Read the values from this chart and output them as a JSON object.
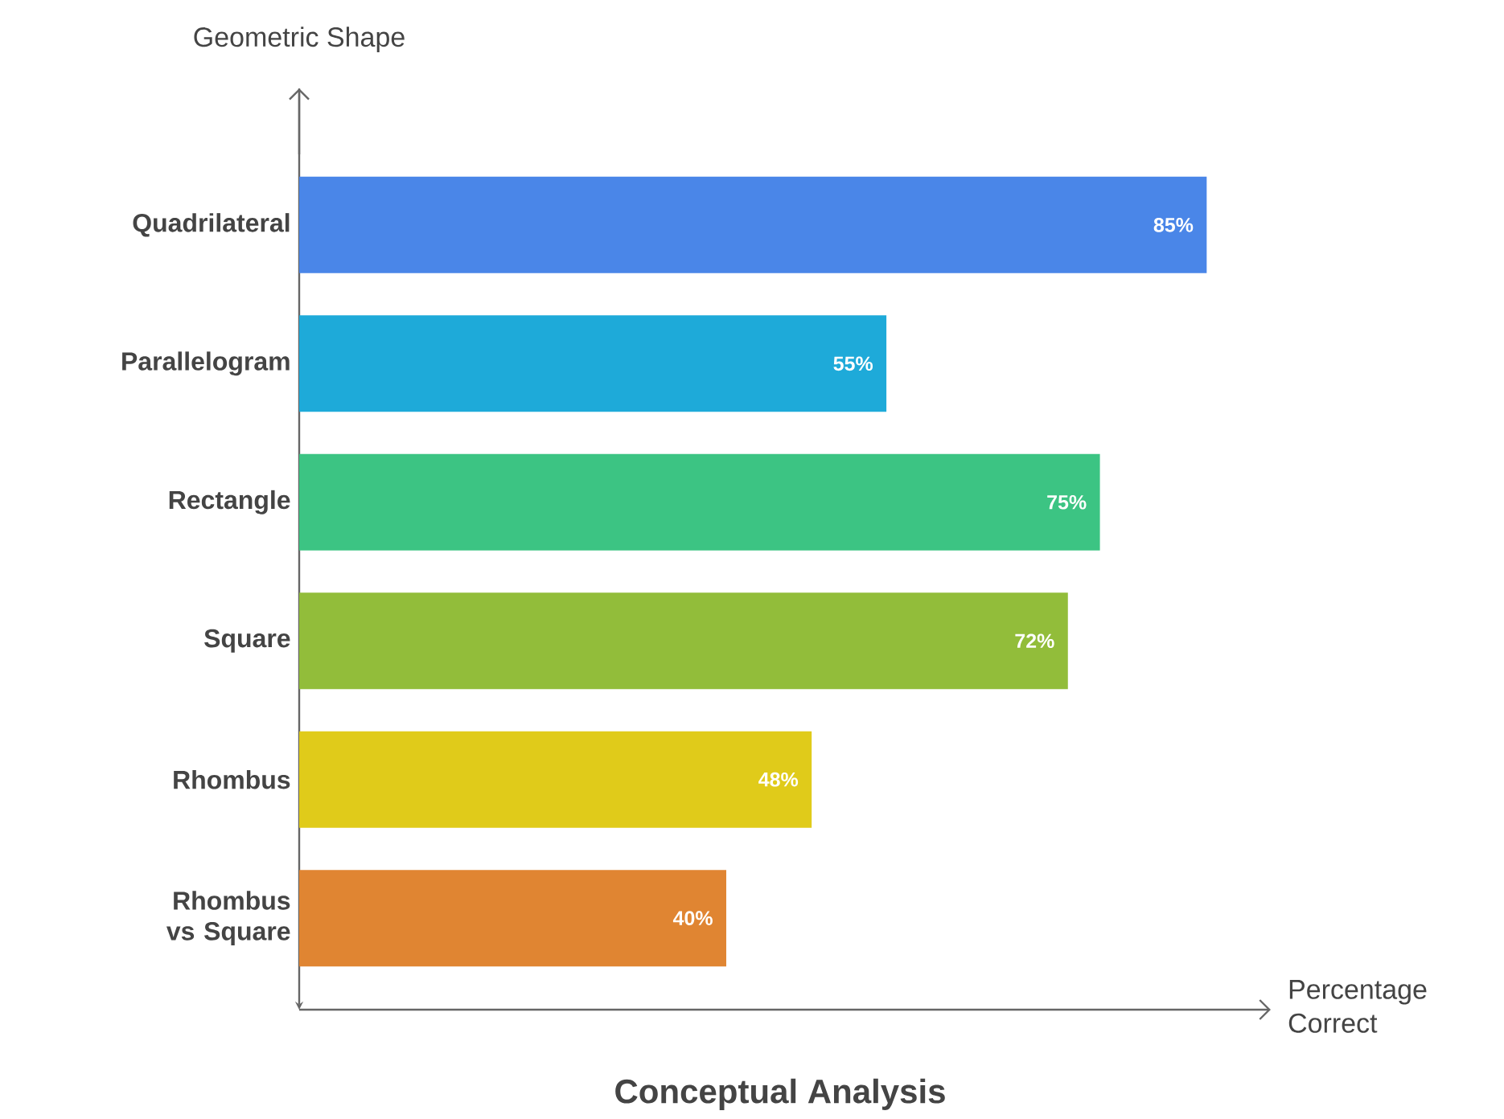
{
  "chart_data": {
    "type": "bar",
    "orientation": "horizontal",
    "title": "Conceptual Analysis",
    "xlabel": "Percentage Correct",
    "ylabel": "Geometric Shape",
    "categories": [
      "Quadrilateral",
      "Parallelogram",
      "Rectangle",
      "Square",
      "Rhombus",
      "Rhombus vs Square"
    ],
    "values": [
      85,
      55,
      75,
      72,
      48,
      40
    ],
    "value_labels": [
      "85%",
      "55%",
      "75%",
      "72%",
      "48%",
      "40%"
    ],
    "colors": [
      "#4a86e8",
      "#1eaad9",
      "#3cc483",
      "#92bd3a",
      "#e0cb1a",
      "#e08532"
    ],
    "xlim": [
      0,
      91
    ]
  }
}
